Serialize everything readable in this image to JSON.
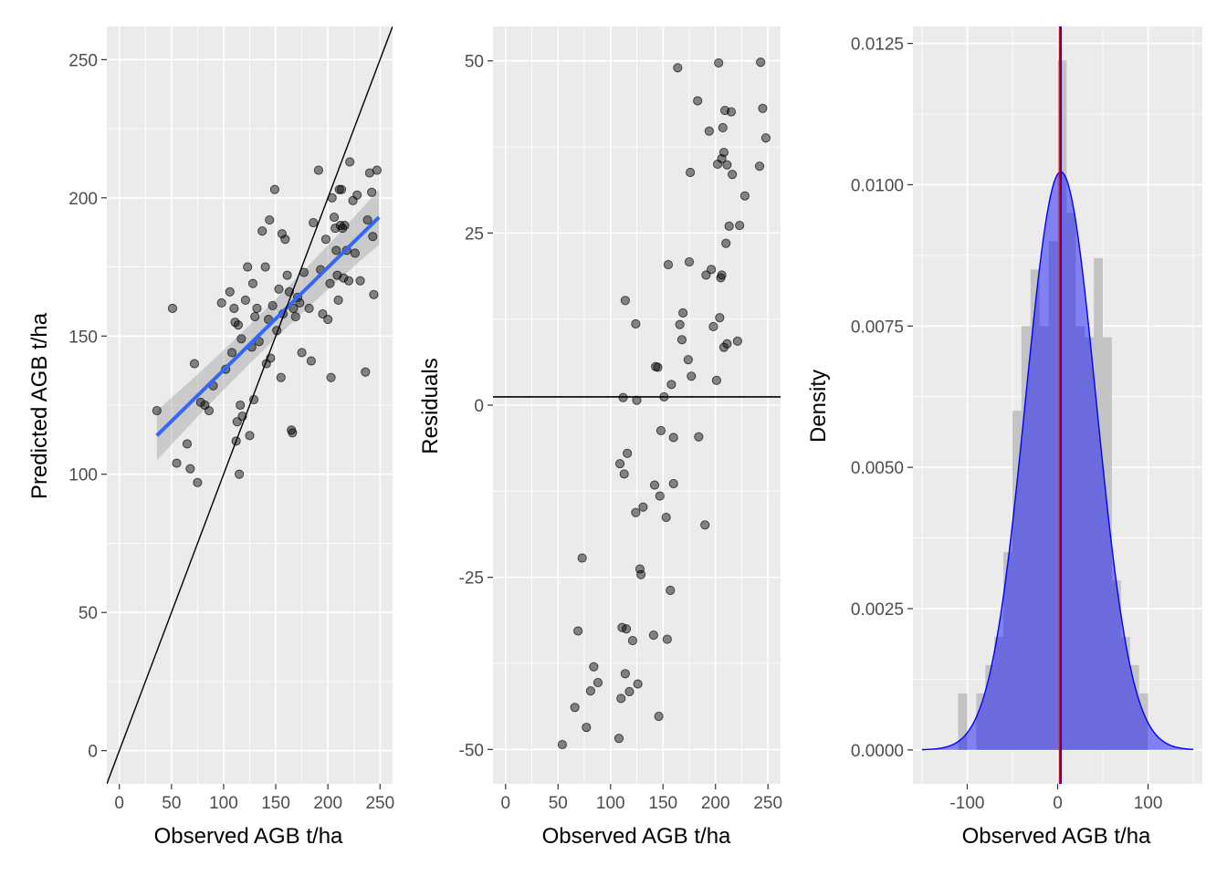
{
  "chart_data": [
    {
      "type": "scatter",
      "xlabel": "Observed AGB t/ha",
      "ylabel": "Predicted AGB t/ha",
      "xlim": [
        -12,
        262
      ],
      "ylim": [
        -12,
        262
      ],
      "xticks": [
        0,
        50,
        100,
        150,
        200,
        250
      ],
      "yticks": [
        0,
        50,
        100,
        150,
        200,
        250
      ],
      "grid": true,
      "reference_line": {
        "slope": 1,
        "intercept": 0,
        "color": "#000000"
      },
      "smooth_line": {
        "method": "lm",
        "x": [
          36,
          249
        ],
        "y": [
          114,
          193
        ],
        "color": "#3366FF",
        "se_band": true,
        "band_halfwidth": [
          9,
          4.5,
          10
        ]
      },
      "points": [
        {
          "x": 36,
          "y": 123
        },
        {
          "x": 51,
          "y": 160
        },
        {
          "x": 55,
          "y": 104
        },
        {
          "x": 65,
          "y": 111
        },
        {
          "x": 68,
          "y": 102
        },
        {
          "x": 72,
          "y": 140
        },
        {
          "x": 75,
          "y": 97
        },
        {
          "x": 78,
          "y": 126
        },
        {
          "x": 82,
          "y": 125
        },
        {
          "x": 86,
          "y": 123
        },
        {
          "x": 90,
          "y": 132
        },
        {
          "x": 98,
          "y": 162
        },
        {
          "x": 102,
          "y": 138
        },
        {
          "x": 106,
          "y": 166
        },
        {
          "x": 108,
          "y": 144
        },
        {
          "x": 110,
          "y": 160
        },
        {
          "x": 111,
          "y": 155
        },
        {
          "x": 112,
          "y": 112
        },
        {
          "x": 113,
          "y": 119
        },
        {
          "x": 114,
          "y": 154
        },
        {
          "x": 115,
          "y": 100
        },
        {
          "x": 116,
          "y": 125
        },
        {
          "x": 117,
          "y": 149
        },
        {
          "x": 118,
          "y": 121
        },
        {
          "x": 121,
          "y": 163
        },
        {
          "x": 123,
          "y": 175
        },
        {
          "x": 125,
          "y": 114
        },
        {
          "x": 127,
          "y": 146
        },
        {
          "x": 128,
          "y": 169
        },
        {
          "x": 129,
          "y": 127
        },
        {
          "x": 130,
          "y": 157
        },
        {
          "x": 132,
          "y": 160
        },
        {
          "x": 134,
          "y": 148
        },
        {
          "x": 137,
          "y": 188
        },
        {
          "x": 140,
          "y": 175
        },
        {
          "x": 141,
          "y": 140
        },
        {
          "x": 143,
          "y": 156
        },
        {
          "x": 144,
          "y": 192
        },
        {
          "x": 145,
          "y": 142
        },
        {
          "x": 147,
          "y": 161
        },
        {
          "x": 149,
          "y": 203
        },
        {
          "x": 151,
          "y": 152
        },
        {
          "x": 153,
          "y": 167
        },
        {
          "x": 155,
          "y": 135
        },
        {
          "x": 156,
          "y": 187
        },
        {
          "x": 157,
          "y": 158
        },
        {
          "x": 159,
          "y": 185
        },
        {
          "x": 161,
          "y": 172
        },
        {
          "x": 163,
          "y": 166
        },
        {
          "x": 165,
          "y": 116
        },
        {
          "x": 166,
          "y": 115
        },
        {
          "x": 167,
          "y": 160
        },
        {
          "x": 169,
          "y": 157
        },
        {
          "x": 171,
          "y": 164
        },
        {
          "x": 173,
          "y": 162
        },
        {
          "x": 175,
          "y": 144
        },
        {
          "x": 177,
          "y": 173
        },
        {
          "x": 182,
          "y": 160
        },
        {
          "x": 184,
          "y": 141
        },
        {
          "x": 186,
          "y": 191
        },
        {
          "x": 191,
          "y": 210
        },
        {
          "x": 193,
          "y": 174
        },
        {
          "x": 195,
          "y": 158
        },
        {
          "x": 198,
          "y": 185
        },
        {
          "x": 200,
          "y": 156
        },
        {
          "x": 202,
          "y": 169
        },
        {
          "x": 203,
          "y": 135
        },
        {
          "x": 204,
          "y": 200
        },
        {
          "x": 206,
          "y": 193
        },
        {
          "x": 207,
          "y": 189
        },
        {
          "x": 208,
          "y": 181
        },
        {
          "x": 209,
          "y": 172
        },
        {
          "x": 210,
          "y": 163
        },
        {
          "x": 211,
          "y": 203
        },
        {
          "x": 212,
          "y": 190
        },
        {
          "x": 213,
          "y": 203
        },
        {
          "x": 214,
          "y": 189
        },
        {
          "x": 215,
          "y": 171
        },
        {
          "x": 216,
          "y": 190
        },
        {
          "x": 218,
          "y": 181
        },
        {
          "x": 220,
          "y": 170
        },
        {
          "x": 221,
          "y": 213
        },
        {
          "x": 224,
          "y": 199
        },
        {
          "x": 226,
          "y": 180
        },
        {
          "x": 228,
          "y": 201
        },
        {
          "x": 231,
          "y": 170
        },
        {
          "x": 236,
          "y": 137
        },
        {
          "x": 238,
          "y": 192
        },
        {
          "x": 240,
          "y": 209
        },
        {
          "x": 242,
          "y": 202
        },
        {
          "x": 243,
          "y": 186
        },
        {
          "x": 244,
          "y": 165
        },
        {
          "x": 247,
          "y": 210
        }
      ]
    },
    {
      "type": "scatter",
      "xlabel": "Observed AGB t/ha",
      "ylabel": "Residuals",
      "xlim": [
        -12,
        262
      ],
      "ylim": [
        -55,
        55
      ],
      "xticks": [
        0,
        50,
        100,
        150,
        200,
        250
      ],
      "yticks": [
        -50,
        -25,
        0,
        25,
        50
      ],
      "grid": true,
      "reference_line": {
        "y": 1.2,
        "color": "#000000"
      },
      "points": [
        {
          "x": 54,
          "y": -49.3
        },
        {
          "x": 66,
          "y": -43.9
        },
        {
          "x": 69,
          "y": -32.8
        },
        {
          "x": 73,
          "y": -22.2
        },
        {
          "x": 77,
          "y": -46.8
        },
        {
          "x": 81,
          "y": -41.5
        },
        {
          "x": 84,
          "y": -38.0
        },
        {
          "x": 88,
          "y": -40.3
        },
        {
          "x": 108,
          "y": -48.4
        },
        {
          "x": 109,
          "y": -8.5
        },
        {
          "x": 110,
          "y": -42.6
        },
        {
          "x": 111,
          "y": -32.3
        },
        {
          "x": 112,
          "y": 1.1
        },
        {
          "x": 113,
          "y": -10.0
        },
        {
          "x": 114,
          "y": -39.0
        },
        {
          "x": 114,
          "y": 15.2
        },
        {
          "x": 115,
          "y": -32.5
        },
        {
          "x": 116,
          "y": -7.0
        },
        {
          "x": 118,
          "y": -41.6
        },
        {
          "x": 121,
          "y": -34.2
        },
        {
          "x": 124,
          "y": -15.6
        },
        {
          "x": 124,
          "y": 11.8
        },
        {
          "x": 125,
          "y": 0.7
        },
        {
          "x": 126,
          "y": -40.5
        },
        {
          "x": 128,
          "y": -23.8
        },
        {
          "x": 129,
          "y": -24.6
        },
        {
          "x": 131,
          "y": -14.8
        },
        {
          "x": 141,
          "y": -33.4
        },
        {
          "x": 142,
          "y": -11.6
        },
        {
          "x": 143,
          "y": 5.6
        },
        {
          "x": 145,
          "y": 5.5
        },
        {
          "x": 146,
          "y": -45.2
        },
        {
          "x": 147,
          "y": -13.2
        },
        {
          "x": 148,
          "y": -3.7
        },
        {
          "x": 151,
          "y": 1.2
        },
        {
          "x": 153,
          "y": -16.3
        },
        {
          "x": 154,
          "y": -34.0
        },
        {
          "x": 155,
          "y": 20.4
        },
        {
          "x": 157,
          "y": -26.9
        },
        {
          "x": 158,
          "y": 3.0
        },
        {
          "x": 160,
          "y": -4.7
        },
        {
          "x": 160,
          "y": -11.4
        },
        {
          "x": 164,
          "y": 49.0
        },
        {
          "x": 166,
          "y": 11.7
        },
        {
          "x": 168,
          "y": 9.5
        },
        {
          "x": 169,
          "y": 13.4
        },
        {
          "x": 174,
          "y": 6.6
        },
        {
          "x": 175,
          "y": 20.8
        },
        {
          "x": 176,
          "y": 33.8
        },
        {
          "x": 177,
          "y": 4.2
        },
        {
          "x": 183,
          "y": 44.2
        },
        {
          "x": 184,
          "y": -4.6
        },
        {
          "x": 190,
          "y": -17.4
        },
        {
          "x": 191,
          "y": 18.9
        },
        {
          "x": 194,
          "y": 39.8
        },
        {
          "x": 196,
          "y": 19.7
        },
        {
          "x": 198,
          "y": 11.4
        },
        {
          "x": 201,
          "y": 3.6
        },
        {
          "x": 202,
          "y": 35.0
        },
        {
          "x": 203,
          "y": 49.7
        },
        {
          "x": 204,
          "y": 12.7
        },
        {
          "x": 205,
          "y": 18.5
        },
        {
          "x": 206,
          "y": 35.8
        },
        {
          "x": 206,
          "y": 18.9
        },
        {
          "x": 207,
          "y": 40.3
        },
        {
          "x": 208,
          "y": 36.7
        },
        {
          "x": 208,
          "y": 8.4
        },
        {
          "x": 209,
          "y": 42.8
        },
        {
          "x": 210,
          "y": 23.5
        },
        {
          "x": 211,
          "y": 8.9
        },
        {
          "x": 211,
          "y": 34.9
        },
        {
          "x": 213,
          "y": 26.0
        },
        {
          "x": 215,
          "y": 42.6
        },
        {
          "x": 216,
          "y": 33.5
        },
        {
          "x": 221,
          "y": 9.3
        },
        {
          "x": 223,
          "y": 26.1
        },
        {
          "x": 228,
          "y": 30.4
        },
        {
          "x": 242,
          "y": 34.7
        },
        {
          "x": 243,
          "y": 49.8
        },
        {
          "x": 245,
          "y": 43.1
        },
        {
          "x": 248,
          "y": 38.8
        }
      ]
    },
    {
      "type": "area",
      "xlabel": "Observed AGB t/ha",
      "ylabel": "Density",
      "xlim": [
        -160,
        160
      ],
      "ylim": [
        -0.0006,
        0.0128
      ],
      "xticks": [
        -100,
        0,
        100
      ],
      "yticks": [
        0,
        0.0025,
        0.005,
        0.0075,
        0.01,
        0.0125
      ],
      "ytick_labels": [
        "0.0000",
        "0.0025",
        "0.0050",
        "0.0075",
        "0.0100",
        "0.0125"
      ],
      "grid": true,
      "histogram": {
        "bin_width": 10,
        "bins_left": [
          -150,
          -140,
          -130,
          -120,
          -110,
          -100,
          -90,
          -80,
          -70,
          -60,
          -50,
          -40,
          -30,
          -20,
          -10,
          0,
          10,
          20,
          30,
          40,
          50,
          60,
          70,
          80,
          90,
          100,
          110,
          120,
          130,
          140
        ],
        "density": [
          0,
          0,
          0,
          0,
          0.001,
          0,
          0.001,
          0.0015,
          0.002,
          0.0035,
          0.006,
          0.0075,
          0.0085,
          0.0075,
          0.009,
          0.0122,
          0.0095,
          0.0075,
          0.0073,
          0.0087,
          0.0073,
          0.003,
          0.002,
          0.0015,
          0.001,
          0,
          0,
          0,
          0,
          0
        ],
        "color": "#bfbfbf"
      },
      "density_curve": {
        "mean": 3.5,
        "sd": 39,
        "x_range": [
          -150,
          150
        ],
        "color": "#0000ff",
        "fill": "#0000ff"
      },
      "vertical_lines": [
        {
          "x": 2.3,
          "color": "#ff0000"
        },
        {
          "x": 3.5,
          "color": "#0000ff"
        }
      ]
    }
  ]
}
